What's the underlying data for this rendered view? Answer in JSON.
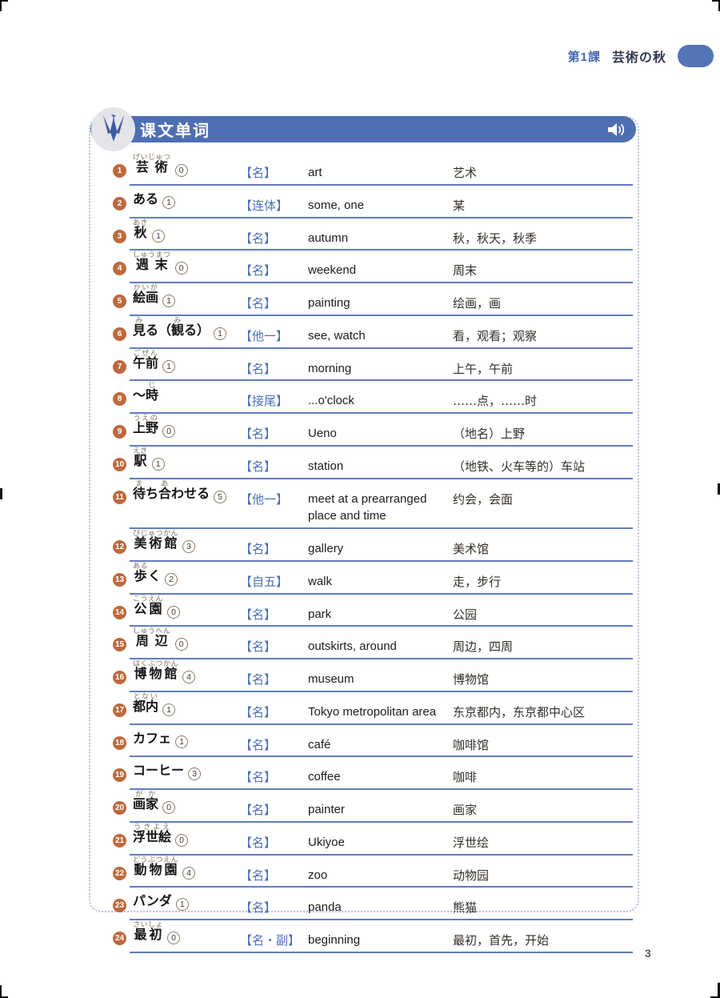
{
  "header": {
    "lesson_label": "第1課",
    "lesson_title": "芸術の秋"
  },
  "panel": {
    "title": "课文单词",
    "logo_icon": "origami-crane-icon",
    "audio_icon": "speaker-icon"
  },
  "colors": {
    "header_bar_blue": "#4e6eb3",
    "divider_blue": "#5f7dbe",
    "number_badge_orange": "#bd693e",
    "pos_text_blue": "#4a6fb5",
    "lesson_label_blue": "#4468b0",
    "furigana_brown": "#83705f"
  },
  "vocab": [
    {
      "num": "1",
      "jp": [
        {
          "t": "芸術",
          "r": "げいじゅつ"
        }
      ],
      "accent": "0",
      "pos": "【名】",
      "en": "art",
      "zh": "艺术"
    },
    {
      "num": "2",
      "jp": [
        {
          "t": "ある"
        }
      ],
      "accent": "1",
      "pos": "【连体】",
      "en": "some, one",
      "zh": "某"
    },
    {
      "num": "3",
      "jp": [
        {
          "t": "秋",
          "r": "あき"
        }
      ],
      "accent": "1",
      "pos": "【名】",
      "en": "autumn",
      "zh": "秋，秋天，秋季"
    },
    {
      "num": "4",
      "jp": [
        {
          "t": "週末",
          "r": "しゅうまつ"
        }
      ],
      "accent": "0",
      "pos": "【名】",
      "en": "weekend",
      "zh": "周末"
    },
    {
      "num": "5",
      "jp": [
        {
          "t": "絵画",
          "r": "かいが"
        }
      ],
      "accent": "1",
      "pos": "【名】",
      "en": "painting",
      "zh": "绘画，画"
    },
    {
      "num": "6",
      "jp": [
        {
          "t": "見",
          "r": "み"
        },
        {
          "t": "る（"
        },
        {
          "t": "観",
          "r": "み"
        },
        {
          "t": "る）"
        }
      ],
      "accent": "1",
      "pos": "【他一】",
      "en": "see, watch",
      "zh": "看，观看；观察"
    },
    {
      "num": "7",
      "jp": [
        {
          "t": "午前",
          "r": "ごぜん"
        }
      ],
      "accent": "1",
      "pos": "【名】",
      "en": "morning",
      "zh": "上午，午前"
    },
    {
      "num": "8",
      "jp": [
        {
          "t": "～"
        },
        {
          "t": "時",
          "r": "じ"
        }
      ],
      "accent": "",
      "pos": "【接尾】",
      "en": "...o'clock",
      "zh": "……点，……时"
    },
    {
      "num": "9",
      "jp": [
        {
          "t": "上野",
          "r": "うえの"
        }
      ],
      "accent": "0",
      "pos": "【名】",
      "en": "Ueno",
      "zh": "（地名）上野"
    },
    {
      "num": "10",
      "jp": [
        {
          "t": "駅",
          "r": "えき"
        }
      ],
      "accent": "1",
      "pos": "【名】",
      "en": "station",
      "zh": "（地铁、火车等的）车站"
    },
    {
      "num": "11",
      "jp": [
        {
          "t": "待",
          "r": "ま"
        },
        {
          "t": "ち"
        },
        {
          "t": "合",
          "r": "あ"
        },
        {
          "t": "わせる"
        }
      ],
      "accent": "5",
      "pos": "【他一】",
      "en": "meet at a prearranged place and time",
      "zh": "约会，会面"
    },
    {
      "num": "12",
      "jp": [
        {
          "t": "美術館",
          "r": "びじゅつかん"
        }
      ],
      "accent": "3",
      "pos": "【名】",
      "en": "gallery",
      "zh": "美术馆"
    },
    {
      "num": "13",
      "jp": [
        {
          "t": "歩",
          "r": "ある"
        },
        {
          "t": "く"
        }
      ],
      "accent": "2",
      "pos": "【自五】",
      "en": "walk",
      "zh": "走，步行"
    },
    {
      "num": "14",
      "jp": [
        {
          "t": "公園",
          "r": "こうえん"
        }
      ],
      "accent": "0",
      "pos": "【名】",
      "en": "park",
      "zh": "公园"
    },
    {
      "num": "15",
      "jp": [
        {
          "t": "周辺",
          "r": "しゅうへん"
        }
      ],
      "accent": "0",
      "pos": "【名】",
      "en": "outskirts, around",
      "zh": "周边，四周"
    },
    {
      "num": "16",
      "jp": [
        {
          "t": "博物館",
          "r": "はくぶつかん"
        }
      ],
      "accent": "4",
      "pos": "【名】",
      "en": "museum",
      "zh": "博物馆"
    },
    {
      "num": "17",
      "jp": [
        {
          "t": "都内",
          "r": "とない"
        }
      ],
      "accent": "1",
      "pos": "【名】",
      "en": "Tokyo metropolitan area",
      "zh": "东京都内，东京都中心区"
    },
    {
      "num": "18",
      "jp": [
        {
          "t": "カフェ"
        }
      ],
      "accent": "1",
      "pos": "【名】",
      "en": "café",
      "zh": "咖啡馆"
    },
    {
      "num": "19",
      "jp": [
        {
          "t": "コーヒー"
        }
      ],
      "accent": "3",
      "pos": "【名】",
      "en": "coffee",
      "zh": "咖啡"
    },
    {
      "num": "20",
      "jp": [
        {
          "t": "画家",
          "r": "がか"
        }
      ],
      "accent": "0",
      "pos": "【名】",
      "en": "painter",
      "zh": "画家"
    },
    {
      "num": "21",
      "jp": [
        {
          "t": "浮世絵",
          "r": "うきよえ"
        }
      ],
      "accent": "0",
      "pos": "【名】",
      "en": "Ukiyoe",
      "zh": "浮世绘"
    },
    {
      "num": "22",
      "jp": [
        {
          "t": "動物園",
          "r": "どうぶつえん"
        }
      ],
      "accent": "4",
      "pos": "【名】",
      "en": "zoo",
      "zh": "动物园"
    },
    {
      "num": "23",
      "jp": [
        {
          "t": "パンダ"
        }
      ],
      "accent": "1",
      "pos": "【名】",
      "en": "panda",
      "zh": "熊猫"
    },
    {
      "num": "24",
      "jp": [
        {
          "t": "最初",
          "r": "さいしょ"
        }
      ],
      "accent": "0",
      "pos": "【名・副】",
      "en": "beginning",
      "zh": "最初，首先，开始"
    }
  ],
  "footer": {
    "page_number": "3"
  }
}
